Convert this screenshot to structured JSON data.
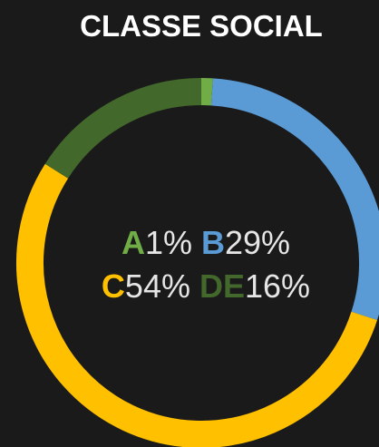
{
  "chart_data": {
    "type": "donut",
    "title": "CLASSE SOCIAL",
    "categories": [
      "A",
      "B",
      "C",
      "DE"
    ],
    "values": [
      1,
      29,
      54,
      16
    ],
    "value_labels": [
      "1%",
      "29%",
      "54%",
      "16%"
    ],
    "colors": [
      "#70ad47",
      "#5b9bd5",
      "#ffc000",
      "#43682b"
    ]
  }
}
